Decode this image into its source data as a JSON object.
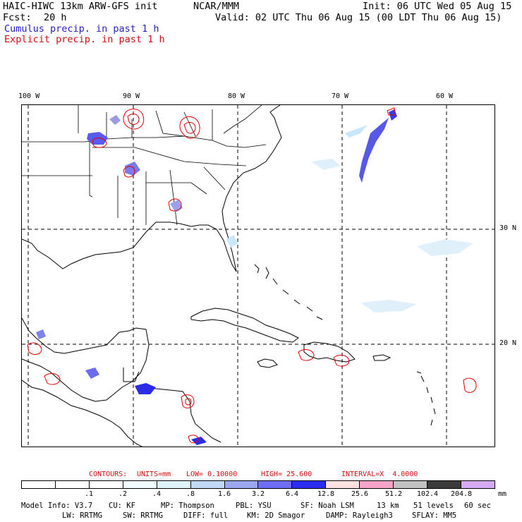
{
  "header": {
    "model_title": "HAIC-HIWC 13km ARW-GFS init",
    "org": "NCAR/MMM",
    "init": "Init: 06 UTC Wed 05 Aug 15",
    "fcst_label": "Fcst:",
    "fcst_value": "20 h",
    "valid": "Valid: 02 UTC Thu 06 Aug 15 (00 LDT Thu 06 Aug 15)",
    "cumulus_label": "Cumulus precip. in past 1 h",
    "explicit_label": "Explicit precip. in past 1 h"
  },
  "map": {
    "lon_labels": [
      "100 W",
      "90 W",
      "80 W",
      "70 W",
      "60 W"
    ],
    "lat_labels": [
      "30 N",
      "20 N"
    ]
  },
  "contours": {
    "prefix": "CONTOURS:",
    "units": "UNITS=mm",
    "low": "LOW= 0.10000",
    "high": "HIGH= 25.600",
    "interval": "INTERVAL=X  4.0000"
  },
  "color_scale": {
    "colors": [
      "#ffffff",
      "#ffffff",
      "#ffffff",
      "#f0fbff",
      "#dff3fb",
      "#c0d8f6",
      "#9aa6f0",
      "#6e6ef4",
      "#2c2cf0",
      "#fde0e0",
      "#f6a3c8",
      "#c2c2c2",
      "#3a3a3a",
      "#d5aaf2"
    ],
    "labels": [
      ".1",
      ".2",
      ".4",
      ".8",
      "1.6",
      "3.2",
      "6.4",
      "12.8",
      "25.6",
      "51.2",
      "102.4",
      "204.8"
    ],
    "units": "mm"
  },
  "footer": {
    "line1": [
      "Model Info: V3.7",
      "CU: KF",
      "MP: Thompson",
      "PBL: YSU",
      "SF: Noah LSM",
      "13 km",
      "51 levels",
      "60 sec"
    ],
    "line2": [
      "LW: RRTMG",
      "SW: RRTMG",
      "DIFF: full",
      "KM: 2D Smagor",
      "DAMP: Rayleigh3",
      "SFLAY: MM5"
    ]
  },
  "colors": {
    "cumulus": "#2a2ae0",
    "cumulus_light": "#c9e6fb",
    "explicit": "#e00000"
  }
}
